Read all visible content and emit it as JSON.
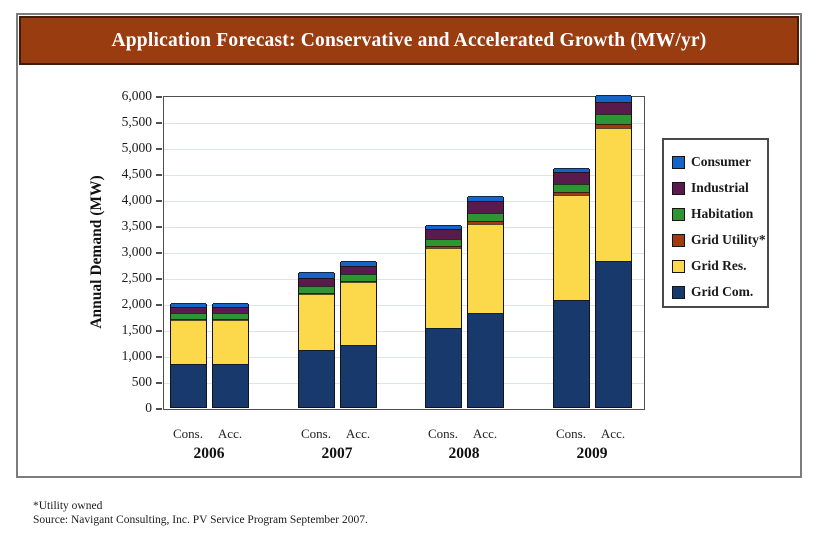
{
  "title": "Application Forecast: Conservative and Accelerated Growth (MW/yr)",
  "footnotes": [
    "*Utility owned",
    "Source: Navigant Consulting, Inc. PV Service Program September 2007."
  ],
  "colors": {
    "banner_bg": "#993c10",
    "gridline": "#dde2ec",
    "consumer": "#1565c8",
    "industrial": "#5a1a4e",
    "habitation": "#2e9434",
    "grid_utility": "#a23a0d",
    "grid_res": "#fbd94b",
    "grid_com": "#17396c"
  },
  "chart_data": {
    "type": "bar",
    "stacked": true,
    "title": "Application Forecast: Conservative and Accelerated Growth (MW/yr)",
    "ylabel": "Annual Demand (MW)",
    "xlabel": "",
    "ylim": [
      0,
      6000
    ],
    "ytick_step": 500,
    "yticks": [
      "0",
      "500",
      "1,000",
      "1,500",
      "2,000",
      "2,500",
      "3,000",
      "3,500",
      "4,000",
      "4,500",
      "5,000",
      "5,500",
      "6,000"
    ],
    "grid": true,
    "legend_position": "right",
    "series_order_bottom_to_top": [
      "grid_com",
      "grid_res",
      "grid_utility",
      "habitation",
      "industrial",
      "consumer"
    ],
    "legend": [
      {
        "key": "consumer",
        "label": "Consumer",
        "color": "#1565c8"
      },
      {
        "key": "industrial",
        "label": "Industrial",
        "color": "#5a1a4e"
      },
      {
        "key": "habitation",
        "label": "Habitation",
        "color": "#2e9434"
      },
      {
        "key": "grid_utility",
        "label": "Grid Utility*",
        "color": "#a23a0d"
      },
      {
        "key": "grid_res",
        "label": "Grid Res.",
        "color": "#fbd94b"
      },
      {
        "key": "grid_com",
        "label": "Grid Com.",
        "color": "#17396c"
      }
    ],
    "groups": [
      {
        "year": "2006",
        "bars": [
          {
            "label": "Cons.",
            "total": 2000,
            "segments": {
              "grid_com": 820,
              "grid_res": 860,
              "grid_utility": 15,
              "habitation": 120,
              "industrial": 115,
              "consumer": 70
            }
          },
          {
            "label": "Acc.",
            "total": 2000,
            "segments": {
              "grid_com": 820,
              "grid_res": 860,
              "grid_utility": 15,
              "habitation": 120,
              "industrial": 115,
              "consumer": 70
            }
          }
        ]
      },
      {
        "year": "2007",
        "bars": [
          {
            "label": "Cons.",
            "total": 2600,
            "segments": {
              "grid_com": 1100,
              "grid_res": 1080,
              "grid_utility": 20,
              "habitation": 130,
              "industrial": 160,
              "consumer": 110
            }
          },
          {
            "label": "Acc.",
            "total": 2800,
            "segments": {
              "grid_com": 1200,
              "grid_res": 1200,
              "grid_utility": 20,
              "habitation": 130,
              "industrial": 170,
              "consumer": 80
            }
          }
        ]
      },
      {
        "year": "2008",
        "bars": [
          {
            "label": "Cons.",
            "total": 3500,
            "segments": {
              "grid_com": 1520,
              "grid_res": 1540,
              "grid_utility": 30,
              "habitation": 150,
              "industrial": 180,
              "consumer": 80
            }
          },
          {
            "label": "Acc.",
            "total": 4050,
            "segments": {
              "grid_com": 1800,
              "grid_res": 1720,
              "grid_utility": 60,
              "habitation": 150,
              "industrial": 230,
              "consumer": 90
            }
          }
        ]
      },
      {
        "year": "2009",
        "bars": [
          {
            "label": "Cons.",
            "total": 4600,
            "segments": {
              "grid_com": 2050,
              "grid_res": 2030,
              "grid_utility": 50,
              "habitation": 150,
              "industrial": 240,
              "consumer": 80
            }
          },
          {
            "label": "Acc.",
            "total": 6000,
            "segments": {
              "grid_com": 2800,
              "grid_res": 2560,
              "grid_utility": 80,
              "habitation": 200,
              "industrial": 230,
              "consumer": 130
            }
          }
        ]
      }
    ]
  }
}
